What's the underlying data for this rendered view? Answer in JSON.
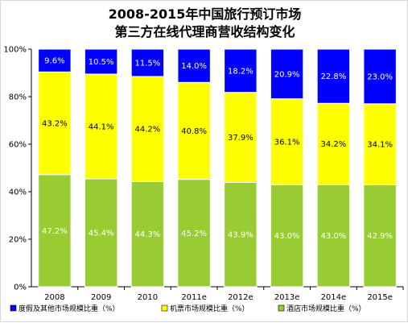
{
  "chart_data": {
    "type": "bar",
    "stacked": true,
    "title": "2008-2015年中国旅行预订市场",
    "subtitle": "第三方在线代理商营收结构变化",
    "categories": [
      "2008",
      "2009",
      "2010",
      "2011e",
      "2012e",
      "2013e",
      "2014e",
      "2015e"
    ],
    "ylim": [
      0,
      100
    ],
    "yticks": [
      "0%",
      "20%",
      "40%",
      "60%",
      "80%",
      "100%"
    ],
    "grid": false,
    "legend_position": "bottom",
    "series": [
      {
        "name": "酒店市场规模比重（%）",
        "color": "#99cc33",
        "label_color": "#ffffff",
        "values": [
          47.2,
          45.4,
          44.3,
          45.2,
          43.9,
          43.0,
          43.0,
          42.9
        ],
        "labels": [
          "47.2%",
          "45.4%",
          "44.3%",
          "45.2%",
          "43.9%",
          "43.0%",
          "43.0%",
          "42.9%"
        ]
      },
      {
        "name": "机票市场规模比重（%）",
        "color": "#ffff00",
        "label_color": "#000000",
        "values": [
          43.2,
          44.1,
          44.2,
          40.8,
          37.9,
          36.1,
          34.2,
          34.1
        ],
        "labels": [
          "43.2%",
          "44.1%",
          "44.2%",
          "40.8%",
          "37.9%",
          "36.1%",
          "34.2%",
          "34.1%"
        ]
      },
      {
        "name": "度假及其他市场规模比重（%）",
        "color": "#0000ff",
        "label_color": "#ffffff",
        "values": [
          9.6,
          10.5,
          11.5,
          14.0,
          18.2,
          20.9,
          22.8,
          23.0
        ],
        "labels": [
          "9.6%",
          "10.5%",
          "11.5%",
          "14.0%",
          "18.2%",
          "20.9%",
          "22.8%",
          "23.0%"
        ]
      }
    ],
    "legend_order": [
      2,
      1,
      0
    ]
  }
}
